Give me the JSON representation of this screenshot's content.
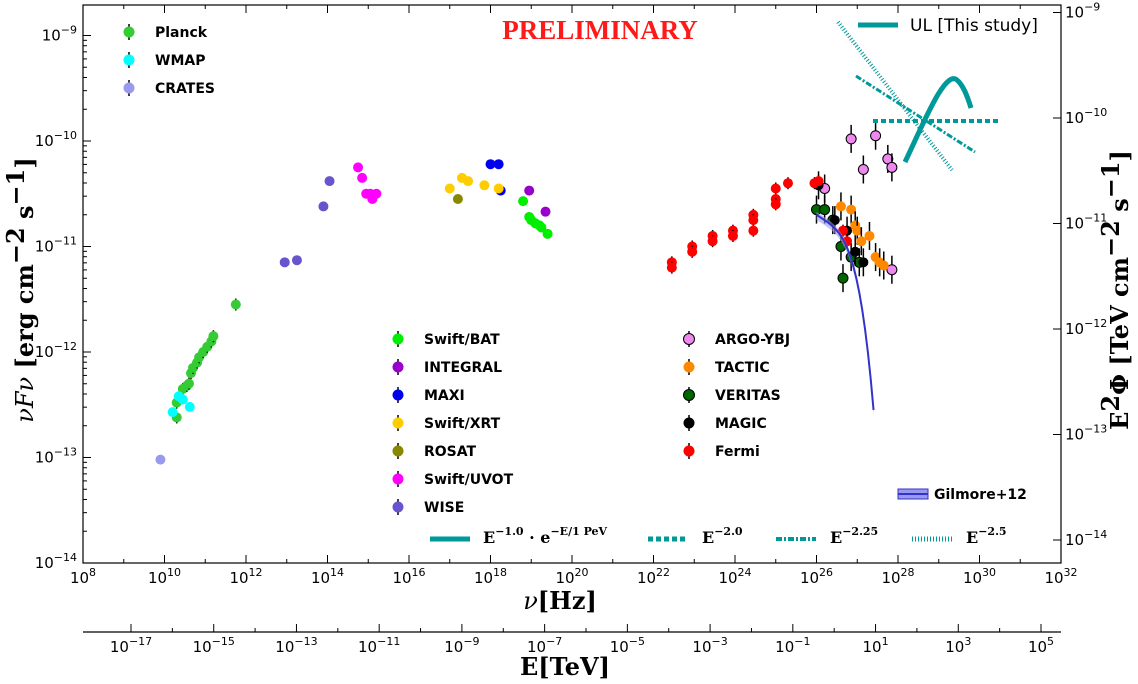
{
  "chart_data": {
    "type": "scatter",
    "title": "PRELIMINARY",
    "x_axis": {
      "label": "ν[Hz]",
      "scale": "log",
      "range": [
        100000000.0,
        1e+32
      ],
      "tick_labels": [
        "10^8",
        "10^10",
        "10^12",
        "10^14",
        "10^16",
        "10^18",
        "10^20",
        "10^22",
        "10^24",
        "10^26",
        "10^28",
        "10^30",
        "10^32"
      ]
    },
    "x_axis_secondary": {
      "label": "E[TeV]",
      "scale": "log",
      "tick_labels": [
        "10^-17",
        "10^-15",
        "10^-13",
        "10^-11",
        "10^-9",
        "10^-7",
        "10^-5",
        "10^-3",
        "10^-1",
        "10^1",
        "10^3",
        "10^5"
      ]
    },
    "y_axis": {
      "label": "νFν [erg cm^-2 s^-1]",
      "scale": "log",
      "range": [
        1e-14,
        2e-09
      ],
      "tick_labels": [
        "10^-14",
        "10^-13",
        "10^-12",
        "10^-11",
        "10^-10",
        "10^-9"
      ]
    },
    "y_axis_secondary": {
      "label": "E^2Φ [TeV cm^-2 s^-1]",
      "scale": "log",
      "tick_labels": [
        "10^-14",
        "10^-13",
        "10^-12",
        "10^-11",
        "10^-10",
        "10^-9"
      ]
    },
    "grid": false,
    "series": [
      {
        "name": "Planck",
        "color": "#33cc33",
        "points": [
          [
            10.3,
            -12.62
          ],
          [
            10.3,
            -12.48
          ],
          [
            10.45,
            -12.35
          ],
          [
            10.55,
            -12.32
          ],
          [
            10.6,
            -12.3
          ],
          [
            10.65,
            -12.2
          ],
          [
            10.7,
            -12.15
          ],
          [
            10.8,
            -12.1
          ],
          [
            10.85,
            -12.05
          ],
          [
            10.95,
            -12.0
          ],
          [
            11.05,
            -11.95
          ],
          [
            11.15,
            -11.9
          ],
          [
            11.2,
            -11.85
          ],
          [
            11.75,
            -11.55
          ]
        ]
      },
      {
        "name": "WMAP",
        "color": "#00ffff",
        "points": [
          [
            10.2,
            -12.57
          ],
          [
            10.35,
            -12.42
          ],
          [
            10.45,
            -12.45
          ],
          [
            10.62,
            -12.52
          ]
        ]
      },
      {
        "name": "CRATES",
        "color": "#9999ee",
        "points": [
          [
            9.9,
            -13.02
          ]
        ]
      },
      {
        "name": "Swift/BAT",
        "color": "#00ee00",
        "points": [
          [
            18.8,
            -10.57
          ],
          [
            18.95,
            -10.72
          ],
          [
            19.0,
            -10.75
          ],
          [
            19.1,
            -10.78
          ],
          [
            19.2,
            -10.8
          ],
          [
            19.25,
            -10.82
          ],
          [
            19.4,
            -10.88
          ]
        ]
      },
      {
        "name": "INTEGRAL",
        "color": "#9900cc",
        "points": [
          [
            18.95,
            -10.47
          ],
          [
            19.35,
            -10.67
          ]
        ]
      },
      {
        "name": "MAXI",
        "color": "#0000ee",
        "points": [
          [
            18.0,
            -10.22
          ],
          [
            18.2,
            -10.22
          ],
          [
            18.25,
            -10.47
          ]
        ]
      },
      {
        "name": "Swift/XRT",
        "color": "#ffcc00",
        "points": [
          [
            17.0,
            -10.45
          ],
          [
            17.3,
            -10.35
          ],
          [
            17.45,
            -10.38
          ],
          [
            17.85,
            -10.42
          ],
          [
            18.2,
            -10.45
          ]
        ]
      },
      {
        "name": "ROSAT",
        "color": "#888800",
        "points": [
          [
            17.2,
            -10.55
          ]
        ]
      },
      {
        "name": "Swift/UVOT",
        "color": "#ff00ff",
        "points": [
          [
            14.75,
            -10.25
          ],
          [
            14.85,
            -10.35
          ],
          [
            14.95,
            -10.5
          ],
          [
            15.05,
            -10.5
          ],
          [
            15.1,
            -10.55
          ],
          [
            15.2,
            -10.5
          ]
        ]
      },
      {
        "name": "WISE",
        "color": "#6655cc",
        "points": [
          [
            12.95,
            -11.15
          ],
          [
            13.25,
            -11.13
          ],
          [
            13.9,
            -10.62
          ],
          [
            14.05,
            -10.38
          ]
        ]
      },
      {
        "name": "ARGO-YBJ",
        "color": "#ee88ee",
        "points": [
          [
            26.2,
            -10.45
          ],
          [
            26.85,
            -9.98
          ],
          [
            27.15,
            -10.27
          ],
          [
            27.45,
            -9.95
          ],
          [
            27.75,
            -10.17
          ],
          [
            27.85,
            -10.25
          ],
          [
            27.85,
            -11.22
          ]
        ]
      },
      {
        "name": "TACTIC",
        "color": "#ff8800",
        "points": [
          [
            26.6,
            -10.62
          ],
          [
            26.85,
            -10.65
          ],
          [
            26.95,
            -10.8
          ],
          [
            27.0,
            -10.85
          ],
          [
            27.1,
            -10.95
          ],
          [
            27.3,
            -10.9
          ],
          [
            27.45,
            -11.1
          ],
          [
            27.55,
            -11.15
          ],
          [
            27.65,
            -11.18
          ]
        ]
      },
      {
        "name": "VERITAS",
        "color": "#006600",
        "points": [
          [
            26.0,
            -10.65
          ],
          [
            26.2,
            -10.65
          ],
          [
            26.4,
            -10.75
          ],
          [
            26.6,
            -11.0
          ],
          [
            26.65,
            -11.3
          ],
          [
            26.85,
            -11.1
          ],
          [
            27.05,
            -11.15
          ]
        ]
      },
      {
        "name": "MAGIC",
        "color": "#000000",
        "points": [
          [
            26.05,
            -10.42
          ],
          [
            26.45,
            -10.75
          ],
          [
            26.75,
            -10.85
          ],
          [
            26.95,
            -11.05
          ],
          [
            27.15,
            -11.15
          ]
        ]
      },
      {
        "name": "Fermi",
        "color": "#ff0000",
        "points": [
          [
            22.45,
            -11.15
          ],
          [
            22.45,
            -11.2
          ],
          [
            22.95,
            -11.0
          ],
          [
            22.95,
            -11.05
          ],
          [
            23.45,
            -10.9
          ],
          [
            23.45,
            -10.95
          ],
          [
            23.95,
            -10.85
          ],
          [
            23.95,
            -10.9
          ],
          [
            24.45,
            -10.7
          ],
          [
            24.45,
            -10.75
          ],
          [
            24.45,
            -10.85
          ],
          [
            25.0,
            -10.45
          ],
          [
            25.0,
            -10.55
          ],
          [
            25.0,
            -10.6
          ],
          [
            25.3,
            -10.4
          ],
          [
            25.95,
            -10.4
          ],
          [
            26.05,
            -10.38
          ],
          [
            26.65,
            -10.85
          ],
          [
            26.75,
            -10.95
          ]
        ]
      }
    ],
    "legend_left_top": [
      "Planck",
      "WMAP",
      "CRATES"
    ],
    "legend_middle": [
      "Swift/BAT",
      "INTEGRAL",
      "MAXI",
      "Swift/XRT",
      "ROSAT",
      "Swift/UVOT",
      "WISE"
    ],
    "legend_right": [
      "ARGO-YBJ",
      "TACTIC",
      "VERITAS",
      "MAGIC",
      "Fermi"
    ],
    "upper_limit_label": "UL [This study]",
    "gilmore_label": "Gilmore+12",
    "model_labels": [
      "E^-1.0 · e^-E/1 PeV",
      "E^-2.0",
      "E^-2.25",
      "E^-2.5"
    ],
    "colors": {
      "ul": "#009999",
      "gilmore": "#3333cc",
      "prelim": "#ff1a1a"
    }
  },
  "text": {
    "title": "PRELIMINARY",
    "ul_label": "UL [This study]",
    "gilmore": "Gilmore+12",
    "xlabel_nu": "ν",
    "xlabel_unit": "[Hz]",
    "xlabel2": "E[TeV]",
    "ylabel_left_main": "νFν",
    "ylabel_left_unit": "[erg cm",
    "ylabel_right_main": "E",
    "ylabel_right_unit": "Φ [TeV cm",
    "model1": "E",
    "model1_sup": "−1.0",
    "model1_mid": "· e",
    "model1_sup2": "−E/1 PeV",
    "model2": "E",
    "model2_sup": "−2.0",
    "model3": "E",
    "model3_sup": "−2.25",
    "model4": "E",
    "model4_sup": "−2.5"
  }
}
